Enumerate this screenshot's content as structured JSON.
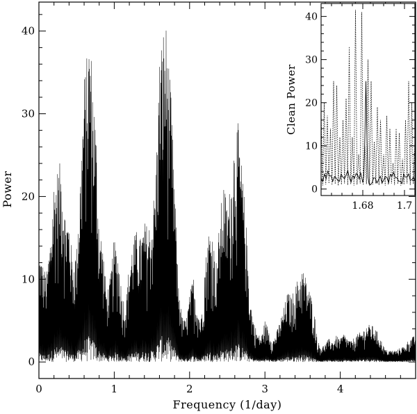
{
  "chart_data": [
    {
      "type": "line",
      "title": "",
      "xlabel": "Frequency (1/day)",
      "ylabel": "Power",
      "xlim": [
        0,
        5
      ],
      "ylim": [
        -2,
        43.5
      ],
      "xticks": [
        0,
        1,
        2,
        3,
        4
      ],
      "yticks": [
        0,
        10,
        20,
        30,
        40
      ],
      "xtick_labels": [
        "0",
        "1",
        "2",
        "3",
        "4"
      ],
      "ytick_labels": [
        "0",
        "10",
        "20",
        "30",
        "40"
      ],
      "grid": false,
      "legend": "none",
      "line_color": "#000000",
      "series": [
        {
          "style": "solid",
          "envelope_x": [
            0,
            0.05,
            0.1,
            0.15,
            0.2,
            0.25,
            0.3,
            0.35,
            0.4,
            0.45,
            0.5,
            0.55,
            0.6,
            0.65,
            0.68,
            0.7,
            0.75,
            0.8,
            0.85,
            0.9,
            0.95,
            1.0,
            1.05,
            1.1,
            1.15,
            1.2,
            1.25,
            1.3,
            1.35,
            1.4,
            1.45,
            1.5,
            1.55,
            1.6,
            1.65,
            1.68,
            1.7,
            1.75,
            1.8,
            1.85,
            1.9,
            1.95,
            2.0,
            2.05,
            2.1,
            2.15,
            2.2,
            2.25,
            2.3,
            2.35,
            2.4,
            2.45,
            2.5,
            2.55,
            2.6,
            2.64,
            2.7,
            2.75,
            2.8,
            2.85,
            2.9,
            2.95,
            3.0,
            3.05,
            3.1,
            3.15,
            3.2,
            3.25,
            3.3,
            3.35,
            3.4,
            3.45,
            3.5,
            3.55,
            3.6,
            3.65,
            3.7,
            3.75,
            3.8,
            3.85,
            3.9,
            3.95,
            4.0,
            4.05,
            4.1,
            4.15,
            4.2,
            4.25,
            4.3,
            4.35,
            4.4,
            4.45,
            4.5,
            4.55,
            4.6,
            4.65,
            4.7,
            4.75,
            4.8,
            4.85,
            4.9,
            4.95,
            5.0
          ],
          "envelope_y": [
            13.5,
            12,
            10.5,
            15,
            22,
            23.5,
            24.5,
            18,
            17.5,
            12,
            14,
            23,
            34.5,
            38,
            41,
            36,
            30,
            17,
            14,
            8.5,
            10.5,
            15,
            13.5,
            8.5,
            7,
            12,
            15,
            16,
            15,
            17,
            16.5,
            17.5,
            23,
            37,
            40.5,
            41.5,
            40,
            33,
            22,
            10,
            5.5,
            5,
            8,
            10.5,
            7,
            5,
            11.5,
            16,
            16,
            12,
            17,
            22,
            19,
            22,
            28,
            29,
            23,
            17,
            8,
            5,
            3.5,
            3,
            5,
            4,
            2.5,
            3.5,
            5,
            6.5,
            8.5,
            8,
            9,
            10.5,
            11.5,
            10,
            8.5,
            6.5,
            2.5,
            1.8,
            2.2,
            2.8,
            2.5,
            3.2,
            2.8,
            3.5,
            2.8,
            2.5,
            3.2,
            3.5,
            3.8,
            4.5,
            4.5,
            4.3,
            3.5,
            2.5,
            1.5,
            1.4,
            1.4,
            1.4,
            1.8,
            1.9,
            2.6,
            3,
            3.2
          ]
        }
      ]
    },
    {
      "type": "line",
      "title": "",
      "xlabel": "",
      "ylabel": "Clean Power",
      "xlim": [
        1.66,
        1.705
      ],
      "ylim": [
        -1.5,
        43
      ],
      "xticks": [
        1.68,
        1.7
      ],
      "yticks": [
        0,
        10,
        20,
        30,
        40
      ],
      "xtick_labels": [
        "1.68",
        "1.7"
      ],
      "ytick_labels": [
        "0",
        "10",
        "20",
        "30",
        "40"
      ],
      "grid": false,
      "legend": "none",
      "series": [
        {
          "style": "dotted",
          "x": [
            1.66,
            1.6615,
            1.663,
            1.6645,
            1.666,
            1.6675,
            1.669,
            1.6705,
            1.672,
            1.6735,
            1.675,
            1.6765,
            1.678,
            1.6795,
            1.681,
            1.6825,
            1.684,
            1.6855,
            1.687,
            1.6885,
            1.69,
            1.6915,
            1.693,
            1.6945,
            1.696,
            1.6975,
            1.699,
            1.7005,
            1.702,
            1.7035,
            1.705
          ],
          "y": [
            18,
            20,
            17,
            14,
            25,
            24,
            12,
            16,
            21,
            33,
            12,
            41.5,
            8,
            41,
            10,
            30,
            25,
            11,
            19,
            16,
            8,
            17,
            14,
            6,
            14,
            13,
            7,
            16,
            25,
            20,
            11
          ]
        },
        {
          "style": "solid",
          "x": [
            1.66,
            1.664,
            1.668,
            1.672,
            1.676,
            1.679,
            1.68,
            1.6805,
            1.681,
            1.6815,
            1.682,
            1.6825,
            1.683,
            1.686,
            1.69,
            1.694,
            1.698,
            1.702,
            1.705
          ],
          "y": [
            2.5,
            3,
            2,
            3.2,
            2.5,
            3.8,
            1.5,
            3,
            12,
            25,
            12,
            2.8,
            1.2,
            2.5,
            2,
            3,
            1.8,
            3.5,
            2
          ]
        }
      ]
    }
  ]
}
